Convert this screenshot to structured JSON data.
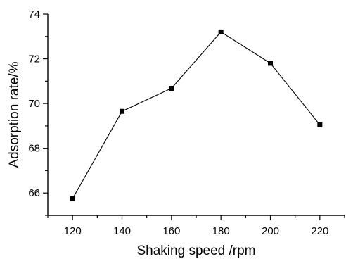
{
  "chart_data": {
    "type": "line",
    "title": "",
    "xlabel": "Shaking speed /rpm",
    "ylabel": "Adsorption rate/%",
    "x": [
      120,
      140,
      160,
      180,
      200,
      220
    ],
    "series": [
      {
        "values": [
          65.75,
          69.65,
          70.68,
          73.2,
          71.8,
          69.05
        ]
      }
    ],
    "xlim": [
      110,
      230
    ],
    "ylim": [
      65,
      74
    ],
    "x_ticks": [
      120,
      140,
      160,
      180,
      200,
      220
    ],
    "y_ticks": [
      66,
      68,
      70,
      72,
      74
    ],
    "marker": "square",
    "grid": false,
    "legend": "none",
    "color": "#000000"
  }
}
